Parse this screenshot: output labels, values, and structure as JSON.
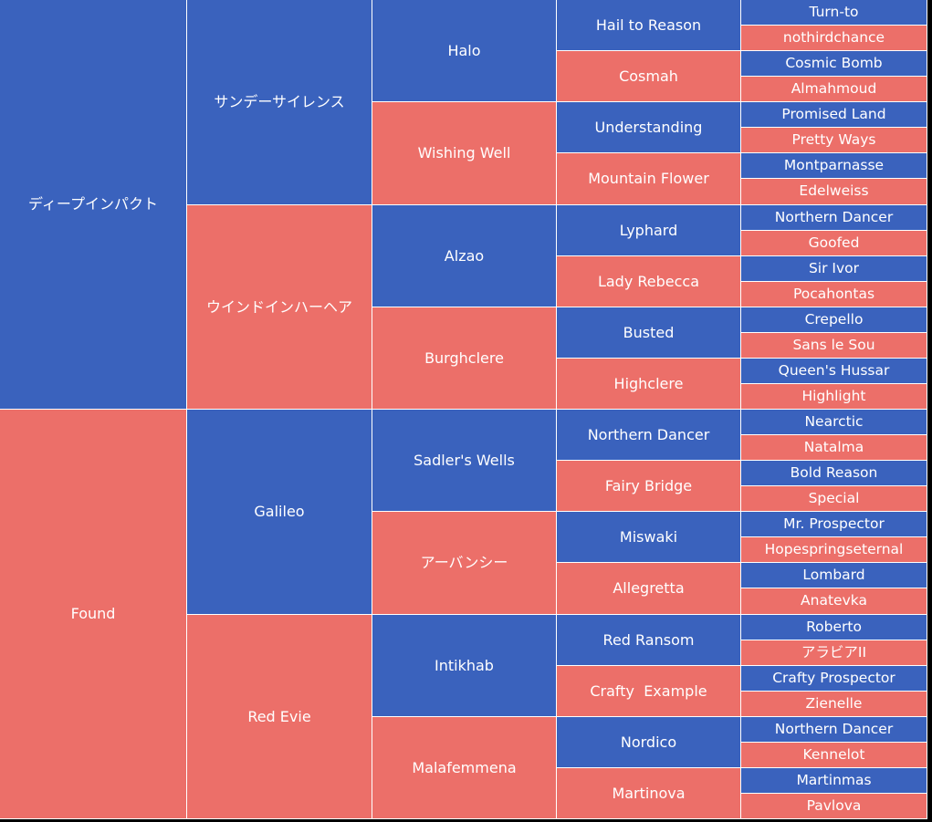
{
  "colors": {
    "male": "#3a62bd",
    "female": "#ec6f69",
    "border": "#ffffff",
    "text": "#ffffff"
  },
  "pedigree": {
    "columns": [
      [
        "ディープインパクト",
        "Found"
      ],
      [
        "サンデーサイレンス",
        "ウインドインハーヘア",
        "Galileo",
        "Red Evie"
      ],
      [
        "Halo",
        "Wishing Well",
        "Alzao",
        "Burghclere",
        "Sadler's Wells",
        "アーバンシー",
        "Intikhab",
        "Malafemmena"
      ],
      [
        "Hail to Reason",
        "Cosmah",
        "Understanding",
        "Mountain Flower",
        "Lyphard",
        "Lady Rebecca",
        "Busted",
        "Highclere",
        "Northern Dancer",
        "Fairy Bridge",
        "Miswaki",
        "Allegretta",
        "Red Ransom",
        "Crafty  Example",
        "Nordico",
        "Martinova"
      ],
      [
        "Turn-to",
        "nothirdchance",
        "Cosmic Bomb",
        "Almahmoud",
        "Promised Land",
        "Pretty Ways",
        "Montparnasse",
        "Edelweiss",
        "Northern Dancer",
        "Goofed",
        "Sir Ivor",
        "Pocahontas",
        "Crepello",
        "Sans le Sou",
        "Queen's Hussar",
        "Highlight",
        "Nearctic",
        "Natalma",
        "Bold Reason",
        "Special",
        "Mr. Prospector",
        "Hopespringseternal",
        "Lombard",
        "Anatevka",
        "Roberto",
        "アラビアII",
        "Crafty Prospector",
        "Zienelle",
        "Northern Dancer",
        "Kennelot",
        "Martinmas",
        "Pavlova"
      ]
    ]
  }
}
